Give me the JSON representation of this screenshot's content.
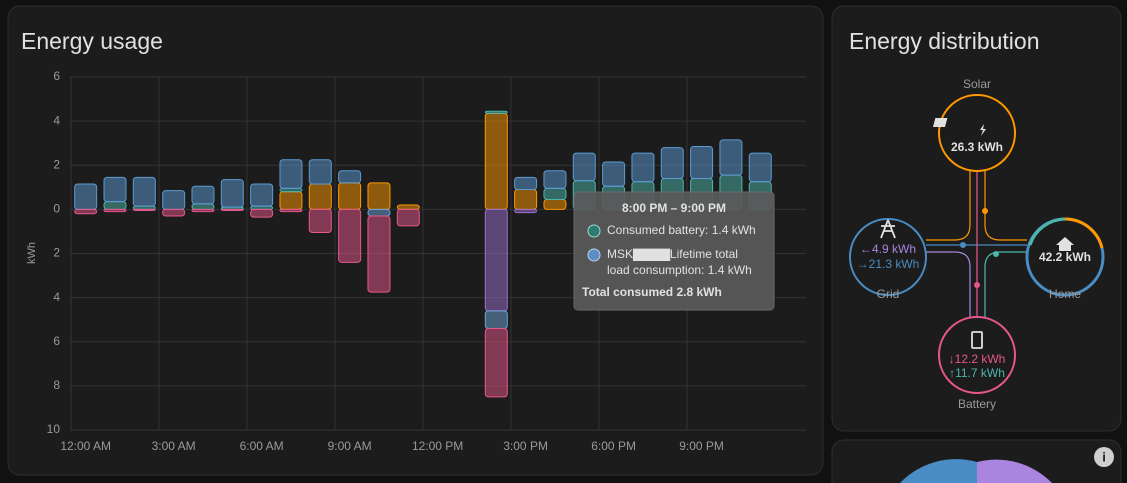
{
  "usage_card": {
    "title": "Energy usage",
    "chart_data": {
      "type": "bar",
      "y_label": "kWh",
      "categories": [
        "12:00 AM",
        null,
        null,
        "3:00 AM",
        null,
        null,
        "6:00 AM",
        null,
        null,
        "9:00 AM",
        null,
        null,
        "12:00 PM",
        null,
        null,
        "3:00 PM",
        null,
        null,
        "6:00 PM",
        null,
        null,
        "9:00 PM",
        null,
        null
      ],
      "ylim": [
        6,
        -10
      ],
      "yticks": [
        6,
        4,
        2,
        0,
        {
          "value": -2,
          "label": "2"
        },
        {
          "value": -4,
          "label": "4"
        },
        {
          "value": -6,
          "label": "6"
        },
        {
          "value": -8,
          "label": "8"
        },
        {
          "value": -10,
          "label": "10"
        }
      ],
      "grid": true,
      "series": [
        {
          "color": "#ff9800",
          "values": [
            0,
            0,
            0,
            0,
            0,
            0,
            0,
            0.8,
            1.15,
            1.2,
            1.2,
            0.2,
            0,
            0,
            4.35,
            0.9,
            0.45,
            0,
            0,
            0,
            0,
            0,
            0,
            0
          ]
        },
        {
          "name": "Consumed battery",
          "color": "#4db6ac",
          "values": [
            0,
            0.35,
            0.15,
            0,
            0.25,
            0.1,
            0.15,
            0.15,
            0,
            0,
            0,
            0,
            0,
            0,
            0.1,
            0,
            0.5,
            1.3,
            1.05,
            1.25,
            1.4,
            1.4,
            1.55,
            1.25
          ]
        },
        {
          "name": "MSK Lifetime total load consumption",
          "color": "#5b9bd5",
          "values": [
            1.15,
            1.1,
            1.3,
            0.85,
            0.8,
            1.25,
            1.0,
            1.3,
            1.1,
            0.55,
            0,
            0,
            0,
            0,
            0,
            0.55,
            0.8,
            1.25,
            1.1,
            1.3,
            1.4,
            1.45,
            1.6,
            1.3
          ]
        },
        {
          "color": "#9b6fd0",
          "values": [
            0,
            0,
            0,
            0,
            0,
            0,
            0,
            0,
            0,
            0,
            0,
            0,
            0,
            0,
            -4.6,
            -0.15,
            0,
            0,
            0,
            0,
            0,
            0,
            0,
            0
          ]
        },
        {
          "color": "#6fa3d8",
          "values": [
            0,
            0,
            0,
            0,
            0,
            0,
            0,
            0,
            0,
            0,
            -0.3,
            0,
            0,
            0,
            -0.8,
            0,
            0,
            0,
            0,
            0,
            0,
            0,
            0,
            0
          ]
        },
        {
          "color": "#e8578c",
          "values": [
            -0.2,
            -0.1,
            -0.05,
            -0.3,
            -0.1,
            -0.05,
            -0.35,
            -0.1,
            -1.05,
            -2.4,
            -3.45,
            -0.75,
            0,
            0,
            -3.1,
            0,
            0,
            0,
            0,
            0,
            0,
            0,
            0,
            0
          ]
        }
      ]
    },
    "tooltip": {
      "title": "8:00 PM – 9:00 PM",
      "lines": [
        "Consumed battery: 1.4 kWh",
        "MSK▇▇▇▇Lifetime total",
        "load consumption: 1.4 kWh"
      ],
      "total": "Total consumed 2.8 kWh"
    }
  },
  "distribution_card": {
    "title": "Energy distribution",
    "solar": {
      "label": "Solar",
      "value": "26.3 kWh"
    },
    "grid": {
      "label": "Grid",
      "in": "←4.9 kWh",
      "out": "→21.3 kWh"
    },
    "home": {
      "label": "Home",
      "value": "42.2 kWh"
    },
    "battery": {
      "label": "Battery",
      "in": "↓12.2 kWh",
      "out": "↑11.7 kWh"
    }
  }
}
